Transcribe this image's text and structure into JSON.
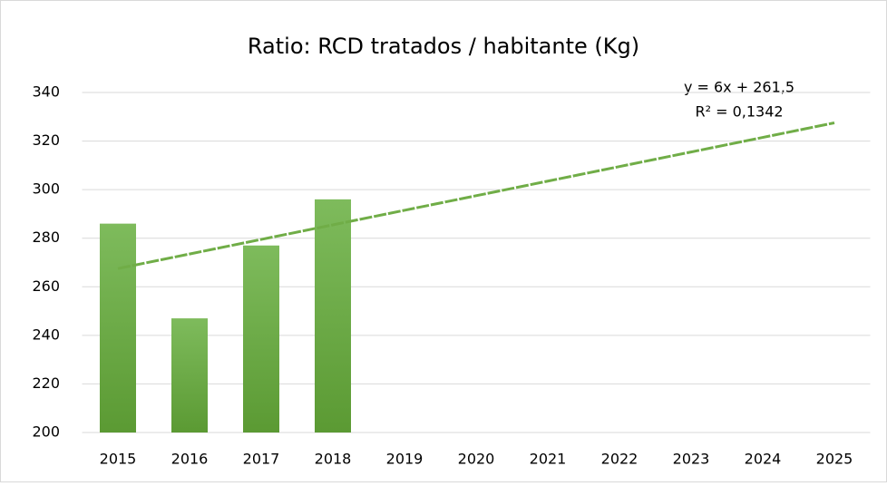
{
  "chart_data": {
    "type": "bar",
    "title": "Ratio: RCD tratados / habitante (Kg)",
    "categories": [
      "2015",
      "2016",
      "2017",
      "2018",
      "2019",
      "2020",
      "2021",
      "2022",
      "2023",
      "2024",
      "2025"
    ],
    "values": [
      286,
      247,
      277,
      296,
      null,
      null,
      null,
      null,
      null,
      null,
      null
    ],
    "color": "#6aaa44",
    "trendline": {
      "values": [
        267.5,
        273.5,
        279.5,
        285.5,
        291.5,
        297.5,
        303.5,
        309.5,
        315.5,
        321.5,
        327.5
      ],
      "color": "#70ad47"
    },
    "annotations": [
      "y = 6x + 261,5",
      "R² = 0,1342"
    ],
    "ylim": [
      200,
      340
    ],
    "yticks": [
      200,
      220,
      240,
      260,
      280,
      300,
      320,
      340
    ],
    "grid": true
  }
}
